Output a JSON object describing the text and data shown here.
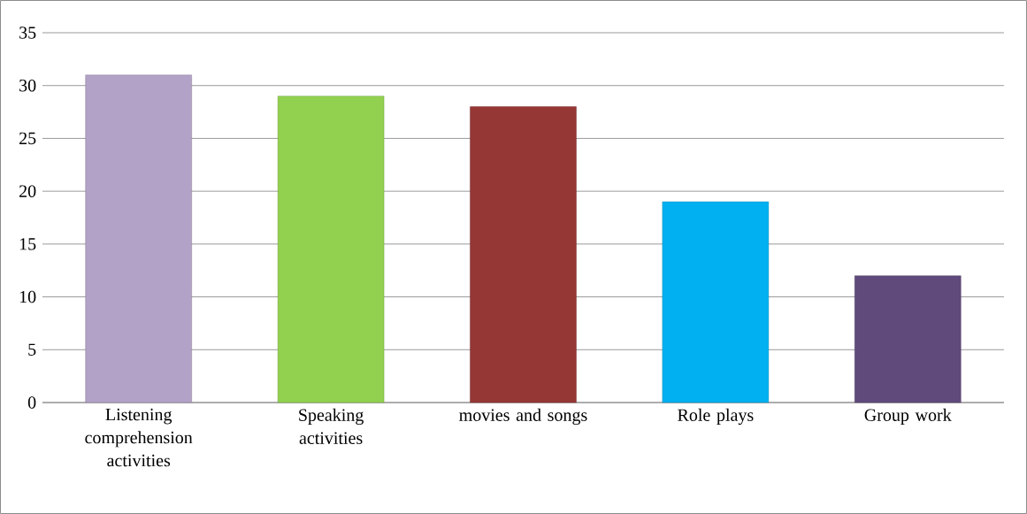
{
  "chart_data": {
    "type": "bar",
    "categories": [
      "Listening comprehension activities",
      "Speaking activities",
      "movies and songs",
      "Role plays",
      "Group work"
    ],
    "values": [
      31,
      29,
      28,
      19,
      12
    ],
    "colors": [
      "#b3a2c7",
      "#92d050",
      "#953735",
      "#00b0f0",
      "#604a7b"
    ],
    "ylim": [
      0,
      35
    ],
    "yticks": [
      0,
      5,
      10,
      15,
      20,
      25,
      30,
      35
    ],
    "grid": "y"
  }
}
